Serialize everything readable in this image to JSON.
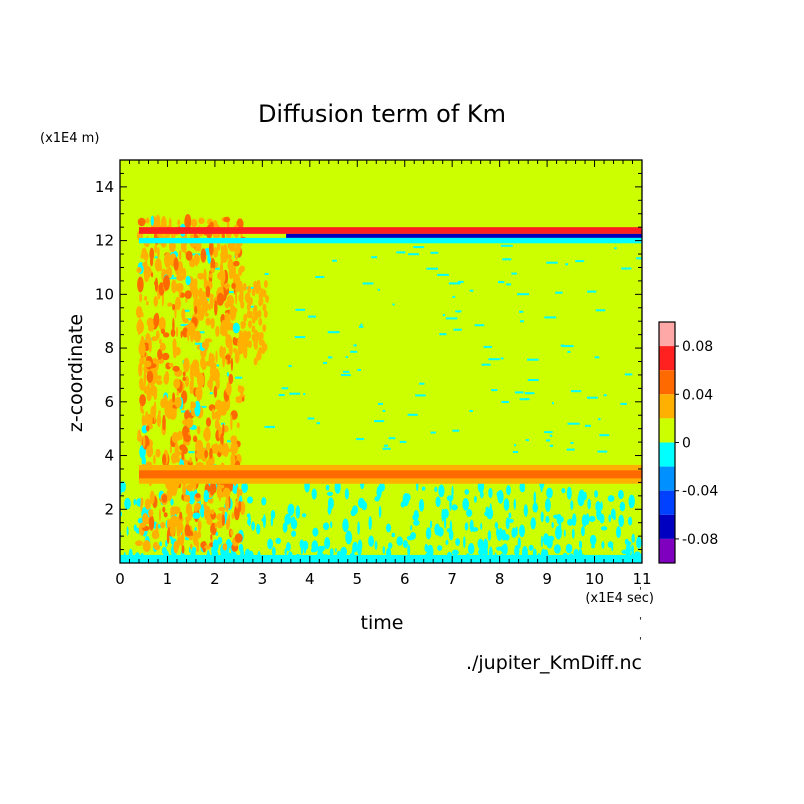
{
  "chart_data": {
    "type": "heatmap",
    "title": "Diffusion term of Km",
    "xlabel": "time",
    "ylabel": "z-coordinate",
    "x_unit": "(x1E4 sec)",
    "y_unit": "(x1E4 m)",
    "source_file": "./jupiter_KmDiff.nc",
    "xlim": [
      0,
      11
    ],
    "ylim": [
      0,
      15
    ],
    "x_ticks": [
      "0",
      "1",
      "2",
      "3",
      "4",
      "5",
      "6",
      "7",
      "8",
      "9",
      "10",
      "11"
    ],
    "y_ticks": [
      "2",
      "4",
      "6",
      "8",
      "10",
      "12",
      "14"
    ],
    "colorbar": {
      "ticks": [
        "0.08",
        "0.04",
        "0",
        "-0.04",
        "-0.08"
      ],
      "tick_values": [
        0.08,
        0.04,
        0,
        -0.04,
        -0.08
      ],
      "range": [
        -0.1,
        0.1
      ],
      "levels": [
        {
          "min": 0.08,
          "max": 0.1,
          "color": "#ffa8a8"
        },
        {
          "min": 0.06,
          "max": 0.08,
          "color": "#ff2020"
        },
        {
          "min": 0.04,
          "max": 0.06,
          "color": "#ff6a00"
        },
        {
          "min": 0.02,
          "max": 0.04,
          "color": "#ffb000"
        },
        {
          "min": 0.0,
          "max": 0.02,
          "color": "#ccff00"
        },
        {
          "min": -0.02,
          "max": 0.0,
          "color": "#00ffff"
        },
        {
          "min": -0.04,
          "max": -0.02,
          "color": "#0090ff"
        },
        {
          "min": -0.06,
          "max": -0.04,
          "color": "#0040ff"
        },
        {
          "min": -0.08,
          "max": -0.06,
          "color": "#0000c0"
        },
        {
          "min": -0.1,
          "max": -0.08,
          "color": "#8000c0"
        }
      ]
    },
    "features": [
      {
        "description": "persistent positive band",
        "z": 3.3,
        "t_range": [
          0.4,
          11
        ],
        "value": 0.05
      },
      {
        "description": "dipole band near top",
        "z": 12.2,
        "t_range": [
          0.4,
          11
        ],
        "value": [
          0.06,
          -0.08
        ]
      },
      {
        "description": "spin-up turbulence",
        "z_range": [
          0.5,
          12.8
        ],
        "t_range": [
          0.4,
          2.6
        ],
        "value": 0.04
      },
      {
        "description": "negative patches near bottom",
        "z_range": [
          0,
          3
        ],
        "t_range": [
          0,
          11
        ],
        "value": -0.01
      }
    ]
  }
}
